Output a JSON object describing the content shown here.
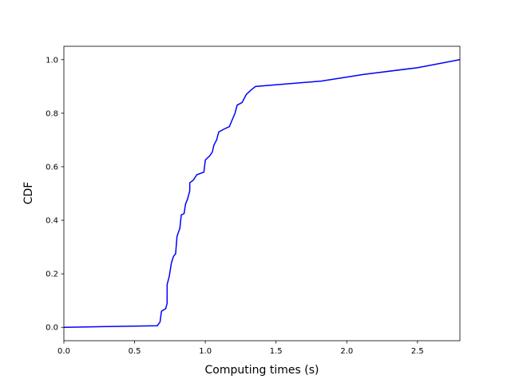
{
  "chart_data": {
    "type": "line",
    "xlabel": "Computing times (s)",
    "ylabel": "CDF",
    "x": [
      0,
      0.66,
      0.68,
      0.69,
      0.72,
      0.73,
      0.73,
      0.745,
      0.76,
      0.775,
      0.79,
      0.8,
      0.82,
      0.83,
      0.85,
      0.86,
      0.875,
      0.89,
      0.89,
      0.915,
      0.94,
      0.99,
      1.0,
      1.03,
      1.05,
      1.06,
      1.08,
      1.095,
      1.13,
      1.17,
      1.19,
      1.21,
      1.225,
      1.26,
      1.29,
      1.32,
      1.355,
      1.82,
      2.12,
      2.5,
      2.8
    ],
    "series": [
      {
        "name": "CDF",
        "color": "#0000ff",
        "values": [
          0,
          0.006,
          0.02,
          0.06,
          0.07,
          0.09,
          0.16,
          0.19,
          0.24,
          0.265,
          0.275,
          0.34,
          0.37,
          0.42,
          0.425,
          0.46,
          0.48,
          0.51,
          0.54,
          0.55,
          0.57,
          0.58,
          0.625,
          0.64,
          0.655,
          0.68,
          0.7,
          0.73,
          0.74,
          0.75,
          0.775,
          0.8,
          0.83,
          0.84,
          0.87,
          0.885,
          0.9,
          0.92,
          0.945,
          0.97,
          1.0
        ]
      }
    ],
    "xlim": [
      0,
      2.8
    ],
    "ylim": [
      -0.05,
      1.05
    ],
    "xticks": [
      {
        "value": 0,
        "label": "0.0"
      },
      {
        "value": 0.5,
        "label": "0.5"
      },
      {
        "value": 1,
        "label": "1.0"
      },
      {
        "value": 1.5,
        "label": "1.5"
      },
      {
        "value": 2,
        "label": "2.0"
      },
      {
        "value": 2.5,
        "label": "2.5"
      }
    ],
    "yticks": [
      {
        "value": 0,
        "label": "0.0"
      },
      {
        "value": 0.2,
        "label": "0.2"
      },
      {
        "value": 0.4,
        "label": "0.4"
      },
      {
        "value": 0.6,
        "label": "0.6"
      },
      {
        "value": 0.8,
        "label": "0.8"
      },
      {
        "value": 1,
        "label": "1.0"
      }
    ],
    "grid": false
  }
}
